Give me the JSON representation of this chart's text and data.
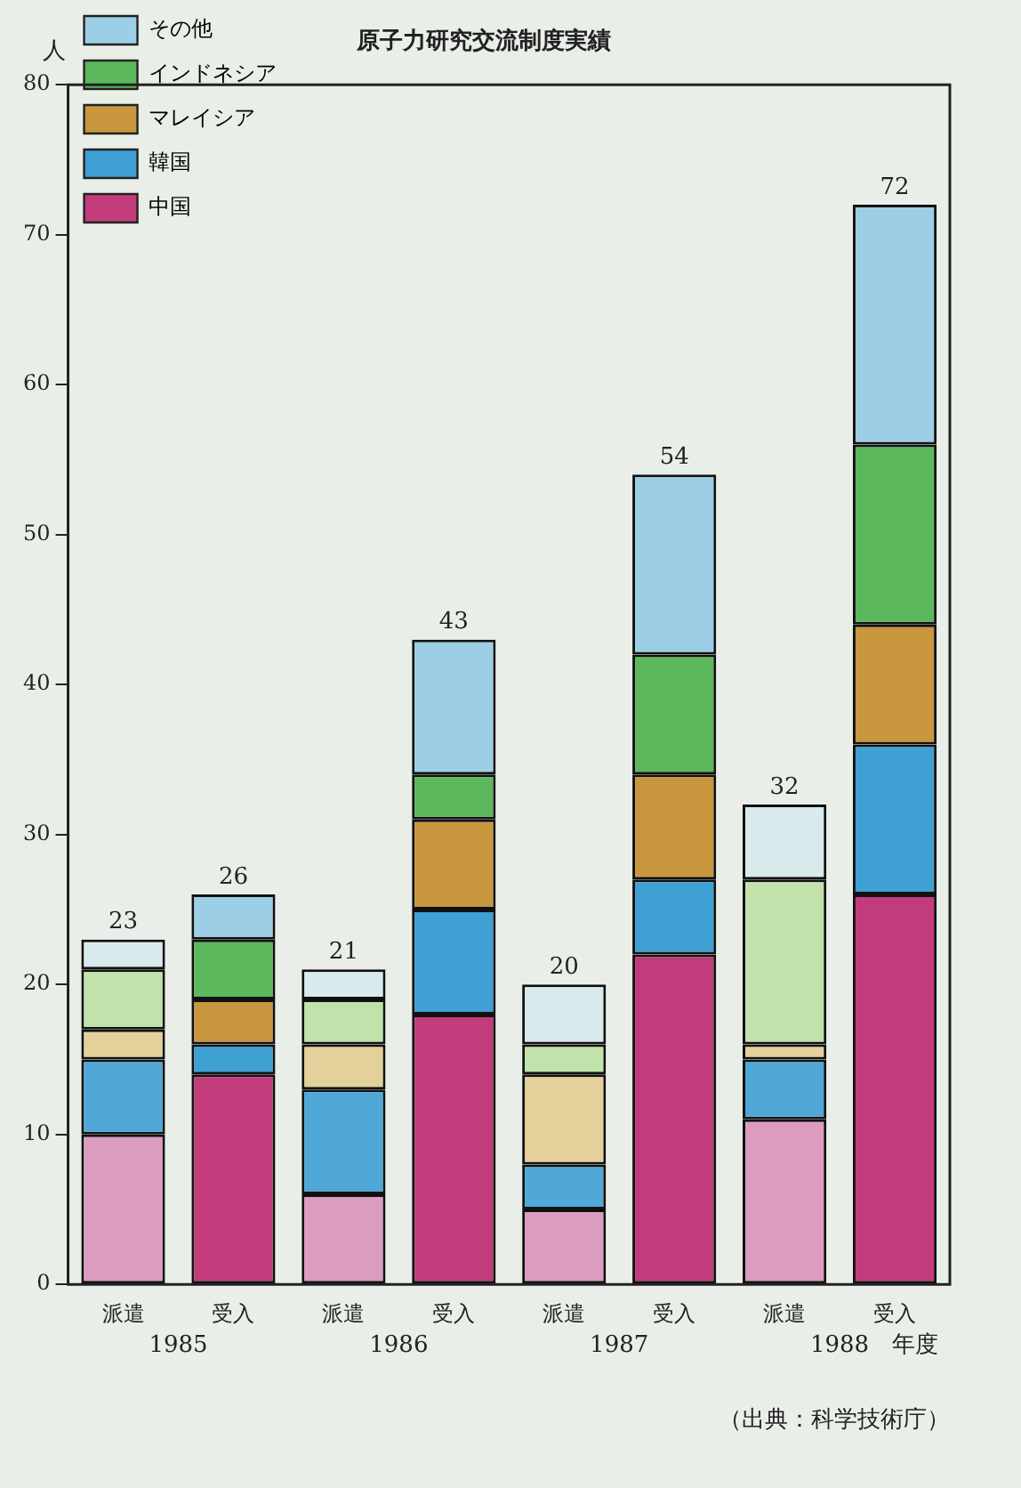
{
  "chart_data": {
    "type": "bar",
    "stacked": true,
    "title": "原子力研究交流制度実績",
    "ylabel": "人",
    "categories": [
      "派遣",
      "受入",
      "派遣",
      "受入",
      "派遣",
      "受入",
      "派遣",
      "受入"
    ],
    "series": [
      {
        "name": "中国",
        "color": "#c23c7c",
        "colors": [
          "#dc9cc0",
          "#c23c7c",
          "#dc9cc0",
          "#c23c7c",
          "#dc9cc0",
          "#c23c7c",
          "#dc9cc0",
          "#c23c7c"
        ],
        "values": [
          10,
          14,
          6,
          18,
          5,
          22,
          11,
          26
        ]
      },
      {
        "name": "韓国",
        "color": "#3fa0d4",
        "colors": [
          "#4fa8d8",
          "#3fa0d4",
          "#4fa8d8",
          "#3fa0d4",
          "#4fa8d8",
          "#3fa0d4",
          "#4fa8d8",
          "#3fa0d4"
        ],
        "values": [
          5,
          2,
          7,
          7,
          3,
          5,
          4,
          10
        ]
      },
      {
        "name": "マレイシア",
        "color": "#c8973e",
        "colors": [
          "#e4d09a",
          "#c8973e",
          "#e4d09a",
          "#c8973e",
          "#e4d09a",
          "#c8973e",
          "#e4d09a",
          "#c8973e"
        ],
        "values": [
          2,
          3,
          3,
          6,
          6,
          7,
          1,
          8
        ]
      },
      {
        "name": "インドネシア",
        "color": "#5cb85c",
        "colors": [
          "#c2e2ab",
          "#5cb85c",
          "#c2e2ab",
          "#5cb85c",
          "#c2e2ab",
          "#5cb85c",
          "#c2e2ab",
          "#5cb85c"
        ],
        "values": [
          4,
          4,
          3,
          3,
          2,
          8,
          11,
          12
        ]
      },
      {
        "name": "その他",
        "color": "#9ccfe6",
        "colors": [
          "#d8eaec",
          "#9ccfe6",
          "#d8eaec",
          "#9ccfe6",
          "#d8eaec",
          "#9ccfe6",
          "#d8eaec",
          "#9ccfe6"
        ],
        "values": [
          2,
          3,
          2,
          9,
          4,
          12,
          5,
          16
        ]
      }
    ],
    "totals": [
      "23",
      "26",
      "21",
      "43",
      "20",
      "54",
      "32",
      "72"
    ],
    "ylim": [
      0,
      80
    ],
    "yticks": [
      0,
      10,
      20,
      30,
      40,
      50,
      60,
      70,
      80
    ],
    "grid": false,
    "legend": "top left",
    "annotations": [
      "1985",
      "1986",
      "1987",
      "1988　年度",
      "（出典：科学技術庁）"
    ]
  }
}
